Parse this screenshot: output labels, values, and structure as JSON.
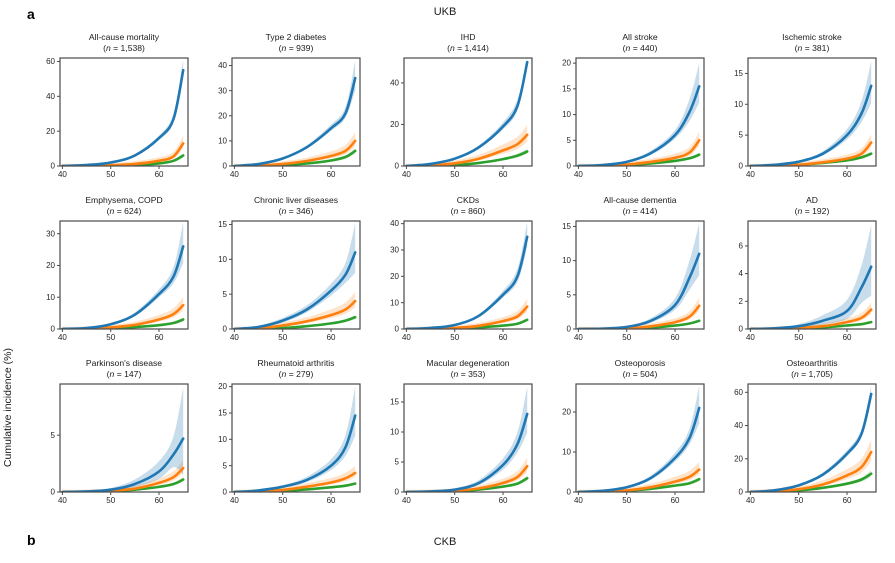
{
  "figure": {
    "panel_a_label": "a",
    "panel_b_label": "b",
    "top_cohort_title": "UKB",
    "bottom_cohort_title": "CKB",
    "ylabel": "Cumulative incidence (%)"
  },
  "colors": {
    "blue": "#1f77b4",
    "orange": "#ff7f0e",
    "green": "#2ca02c",
    "blue_band": "rgba(31,119,180,0.25)",
    "orange_band": "rgba(255,127,14,0.22)",
    "green_band": "rgba(44,160,44,0.18)",
    "frame": "#4a4a4a"
  },
  "chart_data": {
    "type": "line",
    "note": "cumulative incidence (%) vs age, three risk-group series per subplot, blue shown with CI band",
    "x": [
      40,
      45,
      50,
      55,
      60,
      63,
      65
    ],
    "xticks": [
      40,
      50,
      60
    ],
    "xlim": [
      39.5,
      66
    ],
    "grid": "off",
    "legend": "none",
    "subplots": [
      {
        "title": "All-cause mortality",
        "subtitle": "(n = 1,538)",
        "ylim": [
          0,
          62
        ],
        "yticks": [
          0,
          20,
          40,
          60
        ],
        "blue": [
          0,
          0.6,
          2,
          6,
          16,
          27,
          55
        ],
        "blue_hi": [
          0,
          0.8,
          2.4,
          7,
          17.5,
          30,
          61
        ],
        "orange": [
          0,
          0.1,
          0.4,
          1.2,
          3,
          5.5,
          13
        ],
        "green": [
          0,
          0.05,
          0.2,
          0.6,
          1.5,
          3,
          6
        ]
      },
      {
        "title": "Type 2 diabetes",
        "subtitle": "(n = 939)",
        "ylim": [
          0,
          43
        ],
        "yticks": [
          0,
          10,
          20,
          30,
          40
        ],
        "blue": [
          0,
          0.8,
          3,
          7.5,
          15,
          21,
          35
        ],
        "blue_hi": [
          0,
          1,
          3.5,
          8.3,
          16.5,
          23.5,
          42
        ],
        "orange": [
          0,
          0.2,
          0.8,
          2,
          4,
          6,
          10
        ],
        "green": [
          0,
          0.1,
          0.4,
          1,
          2.2,
          3.6,
          6
        ]
      },
      {
        "title": "IHD",
        "subtitle": "(n = 1,414)",
        "ylim": [
          0,
          52
        ],
        "yticks": [
          0,
          20,
          40
        ],
        "blue": [
          0,
          1,
          3.5,
          9,
          19,
          29,
          50
        ],
        "blue_hi": [
          0,
          1.3,
          4.2,
          10,
          21,
          32,
          52
        ],
        "orange": [
          0,
          0.3,
          1.3,
          3.5,
          7.5,
          10.5,
          15
        ],
        "green": [
          0,
          0.1,
          0.5,
          1.5,
          3.3,
          5,
          7
        ]
      },
      {
        "title": "All stroke",
        "subtitle": "(n = 440)",
        "ylim": [
          0,
          21
        ],
        "yticks": [
          0,
          5,
          10,
          15,
          20
        ],
        "blue": [
          0,
          0.2,
          0.8,
          2.5,
          6,
          10.5,
          15.5
        ],
        "blue_hi": [
          0,
          0.3,
          1,
          3,
          7,
          13,
          20
        ],
        "orange": [
          0,
          0.05,
          0.3,
          0.8,
          1.6,
          2.6,
          5
        ],
        "green": [
          0,
          0.05,
          0.2,
          0.5,
          1,
          1.5,
          2.2
        ]
      },
      {
        "title": "Ischemic stroke",
        "subtitle": "(n = 381)",
        "ylim": [
          0,
          17.5
        ],
        "yticks": [
          0,
          5,
          10,
          15
        ],
        "blue": [
          0,
          0.2,
          0.7,
          2,
          5,
          8.5,
          13
        ],
        "blue_hi": [
          0,
          0.3,
          0.9,
          2.4,
          6,
          10.5,
          17
        ],
        "orange": [
          0,
          0.05,
          0.2,
          0.6,
          1.2,
          2,
          3.8
        ],
        "green": [
          0,
          0.05,
          0.2,
          0.5,
          0.9,
          1.4,
          2
        ]
      },
      {
        "title": "Emphysema, COPD",
        "subtitle": "(n = 624)",
        "ylim": [
          0,
          34
        ],
        "yticks": [
          0,
          10,
          20,
          30
        ],
        "blue": [
          0,
          0.3,
          1.5,
          4.5,
          11,
          16.5,
          26
        ],
        "blue_hi": [
          0,
          0.4,
          1.8,
          5.2,
          12.5,
          19.5,
          33.5
        ],
        "orange": [
          0,
          0.1,
          0.5,
          1.3,
          3,
          4.7,
          7.5
        ],
        "green": [
          0,
          0.05,
          0.2,
          0.6,
          1.2,
          1.9,
          3
        ]
      },
      {
        "title": "Chronic liver diseases",
        "subtitle": "(n = 346)",
        "ylim": [
          0,
          15.5
        ],
        "yticks": [
          0,
          5,
          10,
          15
        ],
        "blue": [
          0,
          0.3,
          1.2,
          2.8,
          5.5,
          7.8,
          11
        ],
        "blue_hi": [
          0,
          0.45,
          1.6,
          3.4,
          6.5,
          9.5,
          15.2
        ],
        "orange": [
          0,
          0.1,
          0.5,
          1.1,
          2,
          2.8,
          4
        ],
        "green": [
          0,
          0.05,
          0.15,
          0.4,
          0.8,
          1.2,
          1.7
        ]
      },
      {
        "title": "CKDs",
        "subtitle": "(n = 860)",
        "ylim": [
          0,
          41
        ],
        "yticks": [
          0,
          10,
          20,
          30,
          40
        ],
        "blue": [
          0,
          0.4,
          1.5,
          5,
          13,
          20,
          35
        ],
        "blue_hi": [
          0,
          0.5,
          1.8,
          5.6,
          14.5,
          23,
          40.5
        ],
        "orange": [
          0,
          0.1,
          0.4,
          1.2,
          3,
          4.8,
          8.5
        ],
        "green": [
          0,
          0.05,
          0.2,
          0.6,
          1.3,
          2,
          3.5
        ]
      },
      {
        "title": "All-cause dementia",
        "subtitle": "(n = 414)",
        "ylim": [
          0,
          15.8
        ],
        "yticks": [
          0,
          5,
          10,
          15
        ],
        "blue": [
          0,
          0.05,
          0.3,
          1.2,
          3.5,
          7.5,
          11
        ],
        "blue_hi": [
          0,
          0.1,
          0.45,
          1.6,
          4.5,
          10,
          15.5
        ],
        "orange": [
          0,
          0.02,
          0.1,
          0.4,
          1,
          1.8,
          3.4
        ],
        "green": [
          0,
          0.02,
          0.08,
          0.2,
          0.5,
          0.8,
          1.2
        ]
      },
      {
        "title": "AD",
        "subtitle": "(n = 192)",
        "ylim": [
          0,
          7.8
        ],
        "yticks": [
          0,
          2,
          4,
          6
        ],
        "blue": [
          0,
          0.05,
          0.2,
          0.6,
          1.3,
          3,
          4.5
        ],
        "blue_hi": [
          0,
          0.1,
          0.35,
          1,
          2.1,
          4.6,
          7.5
        ],
        "orange": [
          0,
          0.02,
          0.08,
          0.2,
          0.5,
          0.8,
          1.4
        ],
        "green": [
          0,
          0.01,
          0.05,
          0.12,
          0.25,
          0.35,
          0.5
        ]
      },
      {
        "title": "Parkinson's disease",
        "subtitle": "(n = 147)",
        "ylim": [
          0,
          9.5
        ],
        "yticks": [
          0,
          5
        ],
        "blue": [
          0,
          0.05,
          0.2,
          0.7,
          1.8,
          3.3,
          4.7
        ],
        "blue_hi": [
          0,
          0.1,
          0.35,
          1.1,
          2.7,
          4.9,
          9.2
        ],
        "orange": [
          0,
          0.02,
          0.1,
          0.3,
          0.8,
          1.3,
          2.1
        ],
        "green": [
          0,
          0.02,
          0.08,
          0.2,
          0.45,
          0.7,
          1.1
        ]
      },
      {
        "title": "Rheumatoid arthritis",
        "subtitle": "(n = 279)",
        "ylim": [
          0,
          20.5
        ],
        "yticks": [
          0,
          5,
          10,
          15,
          20
        ],
        "blue": [
          0,
          0.3,
          1,
          2.3,
          5,
          8.5,
          14.5
        ],
        "blue_hi": [
          0,
          0.45,
          1.3,
          2.9,
          6.2,
          10.8,
          20
        ],
        "orange": [
          0,
          0.1,
          0.4,
          1,
          1.8,
          2.6,
          3.6
        ],
        "green": [
          0,
          0.05,
          0.2,
          0.5,
          0.9,
          1.2,
          1.6
        ]
      },
      {
        "title": "Macular degeneration",
        "subtitle": "(n = 353)",
        "ylim": [
          0,
          18
        ],
        "yticks": [
          0,
          5,
          10,
          15
        ],
        "blue": [
          0,
          0.1,
          0.4,
          1.5,
          4.5,
          8,
          13
        ],
        "blue_hi": [
          0,
          0.15,
          0.6,
          2,
          5.6,
          10,
          17.5
        ],
        "orange": [
          0,
          0.05,
          0.2,
          0.6,
          1.5,
          2.5,
          4.3
        ],
        "green": [
          0,
          0.02,
          0.1,
          0.4,
          0.9,
          1.4,
          2.3
        ]
      },
      {
        "title": "Osteoporosis",
        "subtitle": "(n = 504)",
        "ylim": [
          0,
          27
        ],
        "yticks": [
          0,
          10,
          20
        ],
        "blue": [
          0,
          0.3,
          1.2,
          3.5,
          8.5,
          13.5,
          21
        ],
        "blue_hi": [
          0,
          0.4,
          1.5,
          4.1,
          9.8,
          15.8,
          26.5
        ],
        "orange": [
          0,
          0.1,
          0.4,
          1.2,
          2.6,
          3.8,
          5.6
        ],
        "green": [
          0,
          0.05,
          0.3,
          0.8,
          1.6,
          2.2,
          3.2
        ]
      },
      {
        "title": "Osteoarthritis",
        "subtitle": "(n = 1,705)",
        "ylim": [
          0,
          65
        ],
        "yticks": [
          0,
          20,
          40,
          60
        ],
        "blue": [
          0,
          1,
          4,
          10.5,
          23,
          35,
          59
        ],
        "blue_hi": [
          0,
          1.2,
          4.6,
          11.7,
          25,
          38,
          64
        ],
        "orange": [
          0,
          0.5,
          1.7,
          4.5,
          10,
          15,
          24
        ],
        "green": [
          0,
          0.3,
          1,
          2.5,
          5,
          7.5,
          11
        ]
      }
    ]
  }
}
